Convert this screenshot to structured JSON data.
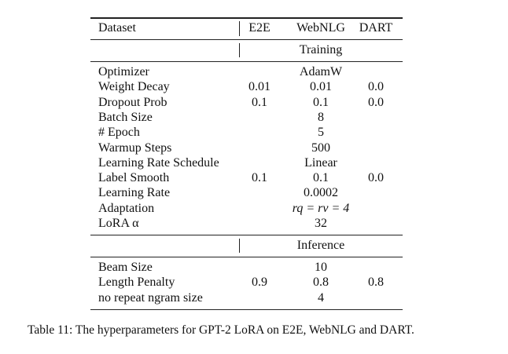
{
  "table": {
    "header": [
      "Dataset",
      "E2E",
      "WebNLG",
      "DART"
    ],
    "sections": [
      {
        "title": "Training",
        "rows": [
          {
            "label": "Optimizer",
            "values": [
              "AdamW"
            ]
          },
          {
            "label": "Weight Decay",
            "values": [
              "0.01",
              "0.01",
              "0.0"
            ]
          },
          {
            "label": "Dropout Prob",
            "values": [
              "0.1",
              "0.1",
              "0.0"
            ]
          },
          {
            "label": "Batch Size",
            "values": [
              "8"
            ]
          },
          {
            "label": "# Epoch",
            "values": [
              "5"
            ]
          },
          {
            "label": "Warmup Steps",
            "values": [
              "500"
            ]
          },
          {
            "label": "Learning Rate Schedule",
            "values": [
              "Linear"
            ]
          },
          {
            "label": "Label Smooth",
            "values": [
              "0.1",
              "0.1",
              "0.0"
            ]
          },
          {
            "label": "Learning Rate",
            "values": [
              "0.0002"
            ]
          },
          {
            "label": "Adaptation",
            "values": [
              "rq = rv = 4"
            ]
          },
          {
            "label": "LoRA α",
            "values": [
              "32"
            ]
          }
        ]
      },
      {
        "title": "Inference",
        "rows": [
          {
            "label": "Beam Size",
            "values": [
              "10"
            ]
          },
          {
            "label": "Length Penalty",
            "values": [
              "0.9",
              "0.8",
              "0.8"
            ]
          },
          {
            "label": "no repeat ngram size",
            "values": [
              "4"
            ]
          }
        ]
      }
    ]
  },
  "caption": "Table 11: The hyperparameters for GPT-2 LoRA on E2E, WebNLG and DART."
}
